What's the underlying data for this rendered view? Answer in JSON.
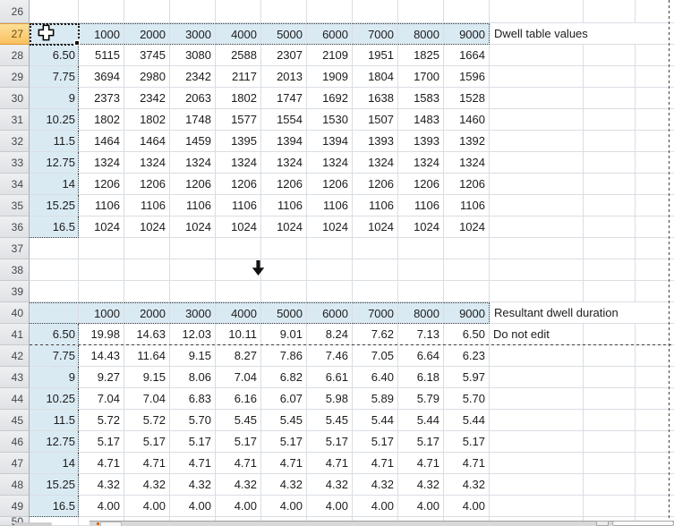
{
  "app": "spreadsheet-grid",
  "colors": {
    "table_header_fill": "#DAEAF3",
    "selected_row_header_fill": "#FAC05F",
    "gridline": "#D9DEE4",
    "page_break_dash": "#3F3F3F",
    "cell_text": "#1C1C1C"
  },
  "icons": [
    "select-cross-cursor-icon",
    "down-arrow-icon",
    "fill-handle"
  ],
  "tables": [
    {
      "caption": "Dwell table values",
      "note": "",
      "col_headers": [
        "1000",
        "2000",
        "3000",
        "4000",
        "5000",
        "6000",
        "7000",
        "8000",
        "9000"
      ],
      "row_labels": [
        "6.50",
        "7.75",
        "9",
        "10.25",
        "11.5",
        "12.75",
        "14",
        "15.25",
        "16.5"
      ],
      "values": [
        [
          "5115",
          "3745",
          "3080",
          "2588",
          "2307",
          "2109",
          "1951",
          "1825",
          "1664"
        ],
        [
          "3694",
          "2980",
          "2342",
          "2117",
          "2013",
          "1909",
          "1804",
          "1700",
          "1596"
        ],
        [
          "2373",
          "2342",
          "2063",
          "1802",
          "1747",
          "1692",
          "1638",
          "1583",
          "1528"
        ],
        [
          "1802",
          "1802",
          "1748",
          "1577",
          "1554",
          "1530",
          "1507",
          "1483",
          "1460"
        ],
        [
          "1464",
          "1464",
          "1459",
          "1395",
          "1394",
          "1394",
          "1393",
          "1393",
          "1392"
        ],
        [
          "1324",
          "1324",
          "1324",
          "1324",
          "1324",
          "1324",
          "1324",
          "1324",
          "1324"
        ],
        [
          "1206",
          "1206",
          "1206",
          "1206",
          "1206",
          "1206",
          "1206",
          "1206",
          "1206"
        ],
        [
          "1106",
          "1106",
          "1106",
          "1106",
          "1106",
          "1106",
          "1106",
          "1106",
          "1106"
        ],
        [
          "1024",
          "1024",
          "1024",
          "1024",
          "1024",
          "1024",
          "1024",
          "1024",
          "1024"
        ]
      ]
    },
    {
      "caption": "Resultant dwell duration",
      "note": "Do not edit",
      "col_headers": [
        "1000",
        "2000",
        "3000",
        "4000",
        "5000",
        "6000",
        "7000",
        "8000",
        "9000"
      ],
      "row_labels": [
        "6.50",
        "7.75",
        "9",
        "10.25",
        "11.5",
        "12.75",
        "14",
        "15.25",
        "16.5"
      ],
      "values": [
        [
          "19.98",
          "14.63",
          "12.03",
          "10.11",
          "9.01",
          "8.24",
          "7.62",
          "7.13",
          "6.50"
        ],
        [
          "14.43",
          "11.64",
          "9.15",
          "8.27",
          "7.86",
          "7.46",
          "7.05",
          "6.64",
          "6.23"
        ],
        [
          "9.27",
          "9.15",
          "8.06",
          "7.04",
          "6.82",
          "6.61",
          "6.40",
          "6.18",
          "5.97"
        ],
        [
          "7.04",
          "7.04",
          "6.83",
          "6.16",
          "6.07",
          "5.98",
          "5.89",
          "5.79",
          "5.70"
        ],
        [
          "5.72",
          "5.72",
          "5.70",
          "5.45",
          "5.45",
          "5.45",
          "5.44",
          "5.44",
          "5.44"
        ],
        [
          "5.17",
          "5.17",
          "5.17",
          "5.17",
          "5.17",
          "5.17",
          "5.17",
          "5.17",
          "5.17"
        ],
        [
          "4.71",
          "4.71",
          "4.71",
          "4.71",
          "4.71",
          "4.71",
          "4.71",
          "4.71",
          "4.71"
        ],
        [
          "4.32",
          "4.32",
          "4.32",
          "4.32",
          "4.32",
          "4.32",
          "4.32",
          "4.32",
          "4.32"
        ],
        [
          "4.00",
          "4.00",
          "4.00",
          "4.00",
          "4.00",
          "4.00",
          "4.00",
          "4.00",
          "4.00"
        ]
      ]
    }
  ],
  "grid": {
    "rows": [
      {
        "num": "26",
        "kind": "blank",
        "h": 26
      },
      {
        "num": "27",
        "kind": "head",
        "table": 0,
        "selected": true,
        "active": true
      },
      {
        "num": "28",
        "kind": "data",
        "table": 0,
        "i": 0
      },
      {
        "num": "29",
        "kind": "data",
        "table": 0,
        "i": 1
      },
      {
        "num": "30",
        "kind": "data",
        "table": 0,
        "i": 2
      },
      {
        "num": "31",
        "kind": "data",
        "table": 0,
        "i": 3
      },
      {
        "num": "32",
        "kind": "data",
        "table": 0,
        "i": 4
      },
      {
        "num": "33",
        "kind": "data",
        "table": 0,
        "i": 5
      },
      {
        "num": "34",
        "kind": "data",
        "table": 0,
        "i": 6
      },
      {
        "num": "35",
        "kind": "data",
        "table": 0,
        "i": 7
      },
      {
        "num": "36",
        "kind": "data",
        "table": 0,
        "i": 8,
        "last": true
      },
      {
        "num": "37",
        "kind": "blank"
      },
      {
        "num": "38",
        "kind": "blank"
      },
      {
        "num": "39",
        "kind": "blank"
      },
      {
        "num": "40",
        "kind": "head",
        "table": 1
      },
      {
        "num": "41",
        "kind": "data",
        "table": 1,
        "i": 0
      },
      {
        "num": "42",
        "kind": "data",
        "table": 1,
        "i": 1
      },
      {
        "num": "43",
        "kind": "data",
        "table": 1,
        "i": 2
      },
      {
        "num": "44",
        "kind": "data",
        "table": 1,
        "i": 3
      },
      {
        "num": "45",
        "kind": "data",
        "table": 1,
        "i": 4
      },
      {
        "num": "46",
        "kind": "data",
        "table": 1,
        "i": 5
      },
      {
        "num": "47",
        "kind": "data",
        "table": 1,
        "i": 6
      },
      {
        "num": "48",
        "kind": "data",
        "table": 1,
        "i": 7
      },
      {
        "num": "49",
        "kind": "data",
        "table": 1,
        "i": 8,
        "last": true
      },
      {
        "num": "50",
        "kind": "blank",
        "h": 10
      }
    ],
    "arrow_cell_row": "38",
    "active_cell_row": "27"
  }
}
